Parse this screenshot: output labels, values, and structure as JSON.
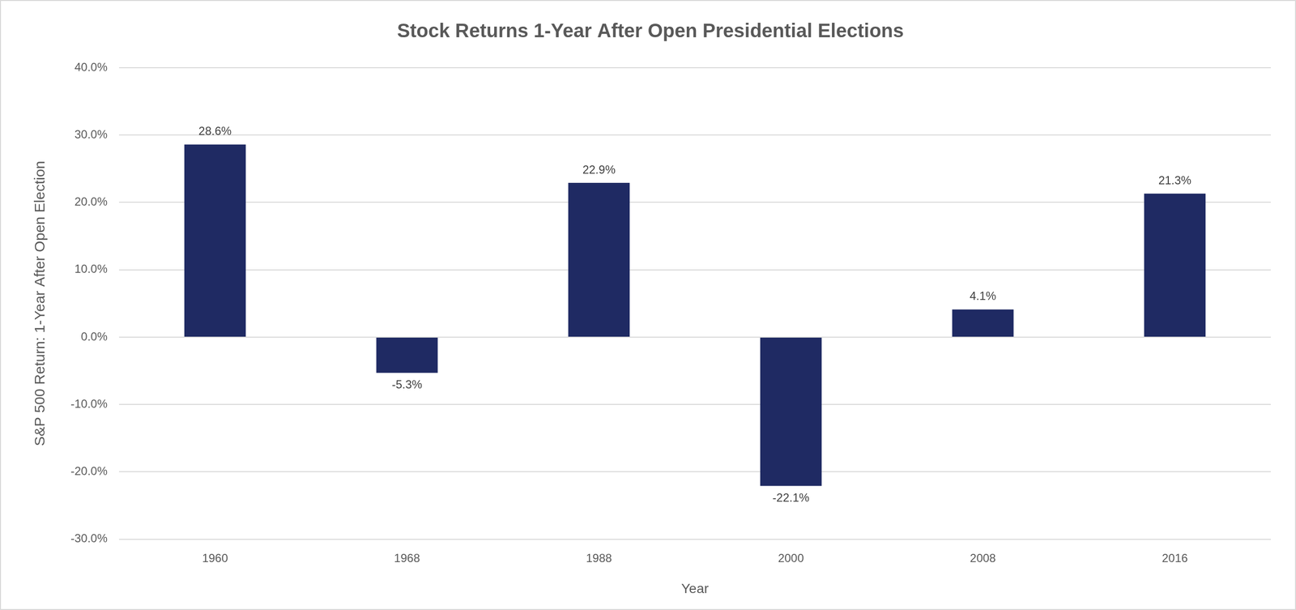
{
  "chart_data": {
    "type": "bar",
    "title": "Stock Returns 1-Year After Open Presidential Elections",
    "x_label": "Year",
    "y_label": "S&P 500 Return: 1-Year After Open Election",
    "categories": [
      "1960",
      "1968",
      "1988",
      "2000",
      "2008",
      "2016"
    ],
    "values": [
      28.6,
      -5.3,
      22.9,
      -22.1,
      4.1,
      21.3
    ],
    "value_labels": [
      "28.6%",
      "-5.3%",
      "22.9%",
      "-22.1%",
      "4.1%",
      "21.3%"
    ],
    "color": "#1f2a63",
    "ylim": [
      -30,
      40
    ],
    "yticks": [
      {
        "value": -30,
        "label": "-30.0%"
      },
      {
        "value": -20,
        "label": "-20.0%"
      },
      {
        "value": -10,
        "label": "-10.0%"
      },
      {
        "value": 0,
        "label": "0.0%"
      },
      {
        "value": 10,
        "label": "10.0%"
      },
      {
        "value": 20,
        "label": "20.0%"
      },
      {
        "value": 30,
        "label": "30.0%"
      },
      {
        "value": 40,
        "label": "40.0%"
      }
    ],
    "grid": true,
    "data_labels": true
  }
}
